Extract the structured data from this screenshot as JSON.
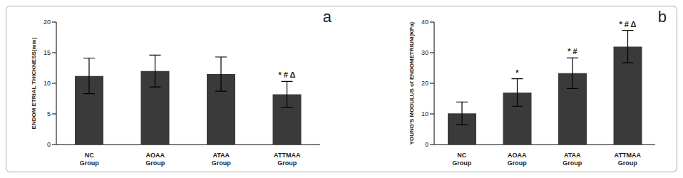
{
  "chart_data": [
    {
      "type": "bar",
      "title": "a",
      "y_label": "ENDOM ETRIAL THICKNESS(mm)",
      "categories": [
        "NC Group",
        "AOAA Group",
        "ATAA Group",
        "ATTMAA Group"
      ],
      "values": [
        11.2,
        12.0,
        11.5,
        8.2
      ],
      "errors": [
        2.9,
        2.6,
        2.8,
        2.1
      ],
      "annotations": [
        null,
        null,
        null,
        "* # Δ"
      ],
      "color": "#3a3a3a",
      "ylim": [
        0,
        20
      ],
      "yticks": [
        0,
        5,
        10,
        15,
        20
      ],
      "grid": false
    },
    {
      "type": "bar",
      "title": "b",
      "y_label": "YOUNG'S MODULUS of ENDOMETRIUM(KPa)",
      "categories": [
        "NC Group",
        "AOAA Group",
        "ATAA Group",
        "ATTMAA Group"
      ],
      "values": [
        10.2,
        17.0,
        23.3,
        32.0
      ],
      "errors": [
        3.7,
        4.5,
        5.0,
        5.3
      ],
      "annotations": [
        null,
        "*",
        "* #",
        "* # Δ"
      ],
      "color": "#3a3a3a",
      "ylim": [
        0,
        40
      ],
      "yticks": [
        0,
        10,
        20,
        30,
        40
      ],
      "grid": false
    }
  ]
}
